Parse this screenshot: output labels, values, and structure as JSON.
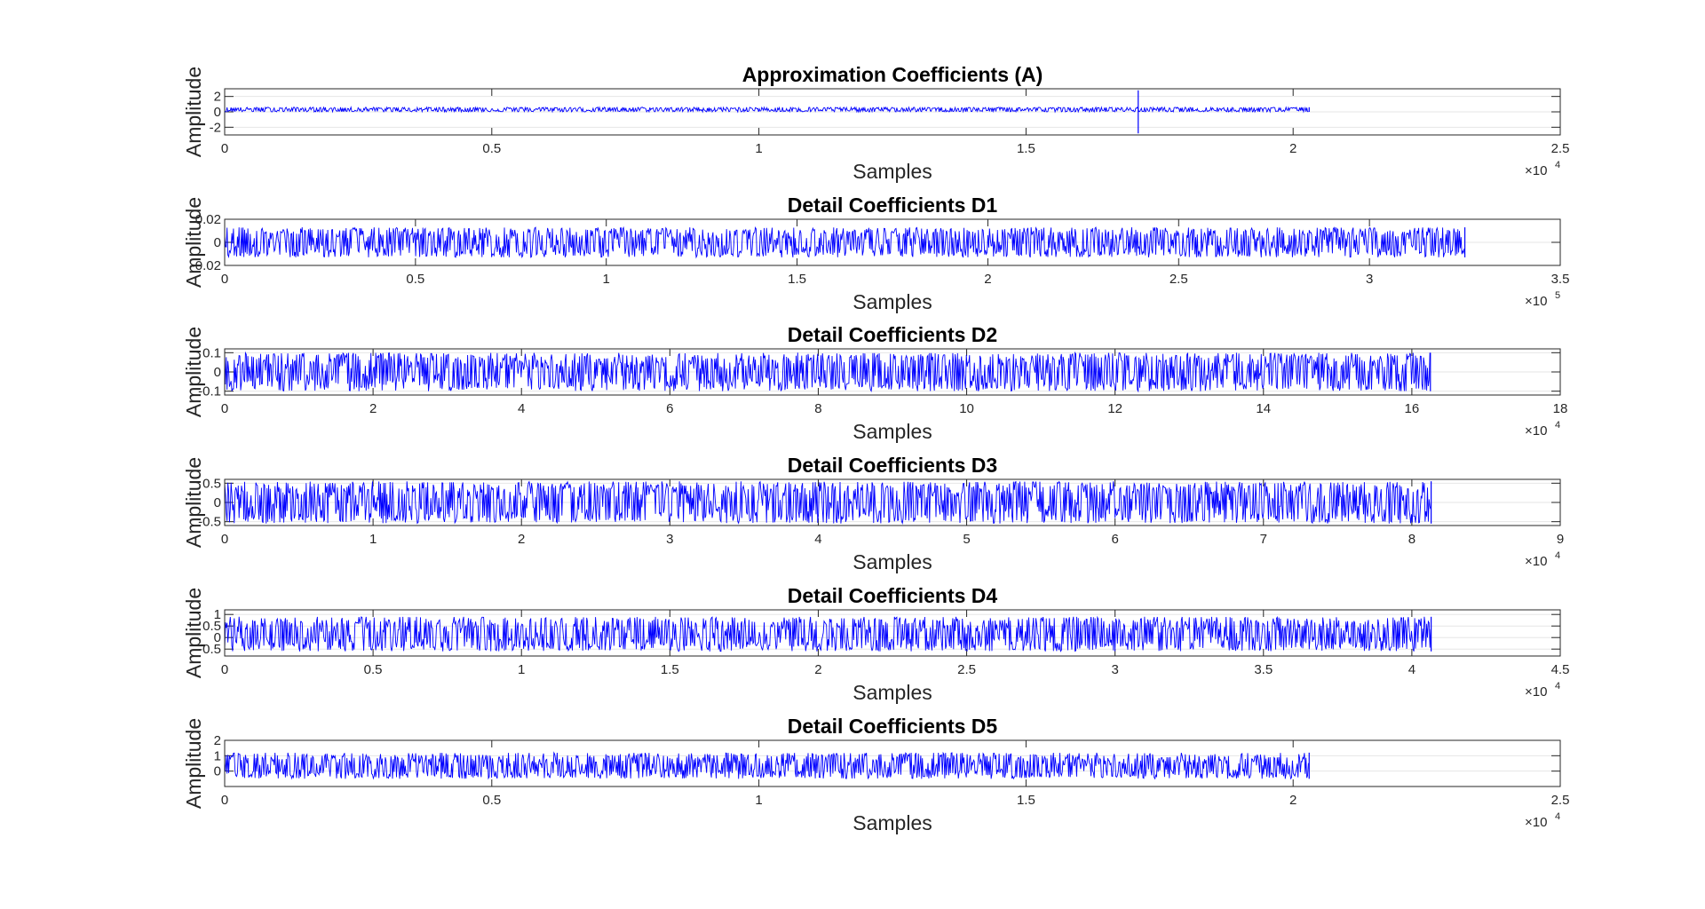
{
  "chart_data": [
    {
      "type": "line",
      "title": "Approximation Coefficients (A)",
      "xlabel": "Samples",
      "ylabel": "Amplitude",
      "xlim": [
        0,
        25000
      ],
      "ylim": [
        -3,
        3
      ],
      "x_ticks": [
        "0",
        "0.5",
        "1",
        "1.5",
        "2",
        "2.5"
      ],
      "y_ticks": [
        "2",
        "0",
        "-2"
      ],
      "x_exponent": "4",
      "grid": "horizontal",
      "color": "#0000ff",
      "series": [
        {
          "n_samples": 20300,
          "typical_range": [
            0,
            0.6
          ],
          "mean": 0.3,
          "spike": {
            "x": 17100,
            "range": [
              -2.8,
              2.8
            ]
          }
        }
      ]
    },
    {
      "type": "line",
      "title": "Detail Coefficients D1",
      "xlabel": "Samples",
      "ylabel": "Amplitude",
      "xlim": [
        0,
        350000
      ],
      "ylim": [
        -0.02,
        0.02
      ],
      "x_ticks": [
        "0",
        "0.5",
        "1",
        "1.5",
        "2",
        "2.5",
        "3",
        "3.5"
      ],
      "y_ticks": [
        "0.02",
        "0",
        "-0.02"
      ],
      "x_exponent": "5",
      "grid": "horizontal",
      "color": "#0000ff",
      "series": [
        {
          "n_samples": 325000,
          "typical_range": [
            -0.013,
            0.013
          ],
          "mean": 0
        }
      ]
    },
    {
      "type": "line",
      "title": "Detail Coefficients D2",
      "xlabel": "Samples",
      "ylabel": "Amplitude",
      "xlim": [
        0,
        180000
      ],
      "ylim": [
        -0.12,
        0.12
      ],
      "x_ticks": [
        "0",
        "2",
        "4",
        "6",
        "8",
        "10",
        "12",
        "14",
        "16",
        "18"
      ],
      "y_ticks": [
        "0.1",
        "0",
        "-0.1"
      ],
      "x_exponent": "4",
      "grid": "horizontal",
      "color": "#0000ff",
      "series": [
        {
          "n_samples": 162500,
          "typical_range": [
            -0.1,
            0.1
          ],
          "mean": 0
        }
      ]
    },
    {
      "type": "line",
      "title": "Detail Coefficients D3",
      "xlabel": "Samples",
      "ylabel": "Amplitude",
      "xlim": [
        0,
        90000
      ],
      "ylim": [
        -0.6,
        0.6
      ],
      "x_ticks": [
        "0",
        "1",
        "2",
        "3",
        "4",
        "5",
        "6",
        "7",
        "8",
        "9"
      ],
      "y_ticks": [
        "0.5",
        "0",
        "-0.5"
      ],
      "x_exponent": "4",
      "grid": "horizontal",
      "color": "#0000ff",
      "series": [
        {
          "n_samples": 81300,
          "typical_range": [
            -0.55,
            0.55
          ],
          "mean": 0
        }
      ]
    },
    {
      "type": "line",
      "title": "Detail Coefficients D4",
      "xlabel": "Samples",
      "ylabel": "Amplitude",
      "xlim": [
        0,
        45000
      ],
      "ylim": [
        -0.8,
        1.2
      ],
      "x_ticks": [
        "0",
        "0.5",
        "1",
        "1.5",
        "2",
        "2.5",
        "3",
        "3.5",
        "4",
        "4.5"
      ],
      "y_ticks": [
        "1",
        "0.5",
        "0",
        "-0.5"
      ],
      "x_exponent": "4",
      "grid": "horizontal",
      "color": "#0000ff",
      "series": [
        {
          "n_samples": 40650,
          "typical_range": [
            -0.6,
            0.9
          ],
          "mean": 0.1
        }
      ]
    },
    {
      "type": "line",
      "title": "Detail Coefficients D5",
      "xlabel": "Samples",
      "ylabel": "Amplitude",
      "xlim": [
        0,
        25000
      ],
      "ylim": [
        -1,
        2
      ],
      "x_ticks": [
        "0",
        "0.5",
        "1",
        "1.5",
        "2",
        "2.5"
      ],
      "y_ticks": [
        "2",
        "1",
        "0"
      ],
      "x_exponent": "4",
      "grid": "horizontal",
      "color": "#0000ff",
      "series": [
        {
          "n_samples": 20300,
          "typical_range": [
            -0.5,
            1.2
          ],
          "mean": 0.2
        }
      ]
    }
  ]
}
